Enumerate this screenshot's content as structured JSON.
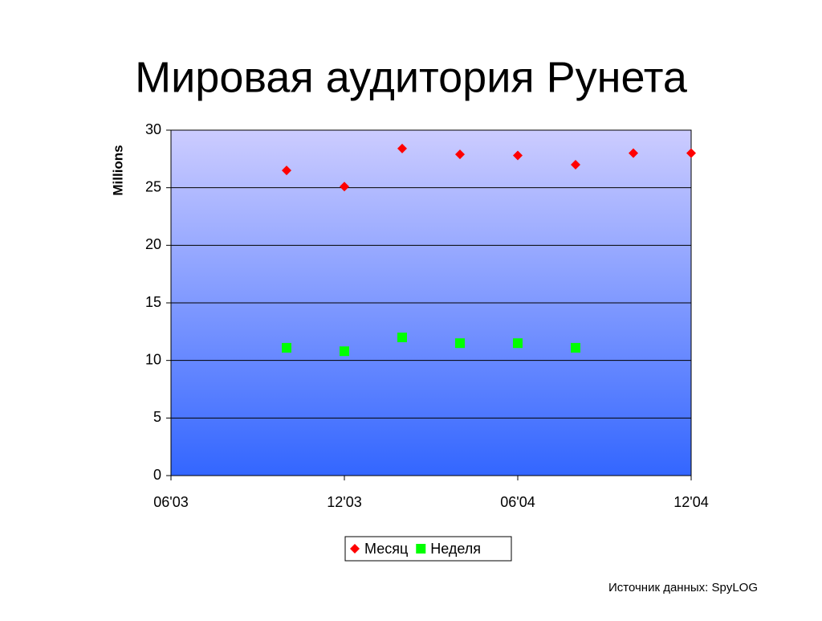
{
  "chart_data": {
    "type": "scatter",
    "title": "Мировая аудитория Рунета",
    "y_label": "Millions",
    "source": "Источник данных: SpyLOG",
    "categories": [
      "06'03",
      null,
      null,
      "12'03",
      null,
      null,
      "06'04",
      null,
      null,
      "12'04"
    ],
    "series": [
      {
        "name": "Месяц",
        "color": "#ff0000",
        "marker": "diamond",
        "values": [
          null,
          null,
          26.5,
          25.1,
          28.4,
          27.9,
          27.8,
          27.0,
          28.0,
          28.0
        ]
      },
      {
        "name": "Неделя",
        "color": "#00ff00",
        "marker": "square",
        "values": [
          null,
          null,
          11.1,
          10.8,
          12.0,
          11.5,
          11.5,
          11.1,
          null,
          null
        ]
      }
    ],
    "ylim": [
      0,
      30
    ],
    "yticks": [
      0,
      5,
      10,
      15,
      20,
      25,
      30
    ],
    "grid": true,
    "legend": "bottom"
  }
}
